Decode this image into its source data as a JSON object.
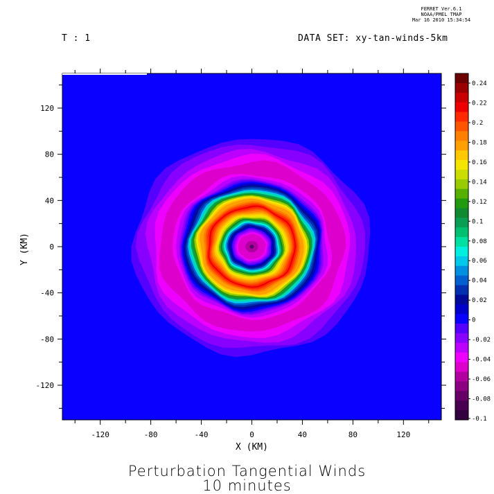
{
  "header": {
    "software": "FERRET  Ver.6.1",
    "org": "NOAA/PMEL TMAP",
    "timestamp": "Mar 16 2010 15:34:54",
    "time_label": "T : 1",
    "dataset_label": "DATA SET: xy-tan-winds-5km"
  },
  "titles": {
    "line1": "Perturbation Tangential Winds",
    "line2": "10 minutes"
  },
  "colors": {
    "background_field": "#0a00ff"
  },
  "chart_data": {
    "type": "heatmap",
    "title": "Perturbation Tangential Winds",
    "subtitle": "10 minutes",
    "xlabel": "X (KM)",
    "ylabel": "Y (KM)",
    "xlim": [
      -150,
      150
    ],
    "ylim": [
      -150,
      150
    ],
    "x_ticks": [
      -120,
      -80,
      -40,
      0,
      40,
      80,
      120
    ],
    "y_ticks": [
      120,
      80,
      40,
      0,
      -40,
      -80,
      -120
    ],
    "grid": false,
    "field_description": "axisymmetric vortex perturbation with positive ring near radius 35 km and negative ring near radius 65 km",
    "rings": [
      {
        "radius_km": 0,
        "value": -0.06
      },
      {
        "radius_km": 12,
        "value": -0.04
      },
      {
        "radius_km": 20,
        "value": 0.04
      },
      {
        "radius_km": 27,
        "value": 0.16
      },
      {
        "radius_km": 35,
        "value": 0.22
      },
      {
        "radius_km": 44,
        "value": 0.16
      },
      {
        "radius_km": 51,
        "value": 0.04
      },
      {
        "radius_km": 58,
        "value": -0.02
      },
      {
        "radius_km": 66,
        "value": -0.05
      },
      {
        "radius_km": 74,
        "value": -0.04
      },
      {
        "radius_km": 84,
        "value": -0.02
      },
      {
        "radius_km": 95,
        "value": 0
      }
    ],
    "colorbar": {
      "labels": [
        "0.24",
        "0.22",
        "0.2",
        "0.18",
        "0.16",
        "0.14",
        "0.12",
        "0.1",
        "0.08",
        "0.06",
        "0.04",
        "0.02",
        "0",
        "-0.02",
        "-0.04",
        "-0.06",
        "-0.08",
        "-0.1"
      ],
      "levels": [
        {
          "value": 0.25,
          "color": "#6b0000"
        },
        {
          "value": 0.24,
          "color": "#9a0000"
        },
        {
          "value": 0.23,
          "color": "#c80000"
        },
        {
          "value": 0.22,
          "color": "#ee0000"
        },
        {
          "value": 0.21,
          "color": "#ff2a00"
        },
        {
          "value": 0.2,
          "color": "#ff5500"
        },
        {
          "value": 0.19,
          "color": "#ff7f00"
        },
        {
          "value": 0.18,
          "color": "#ffa000"
        },
        {
          "value": 0.17,
          "color": "#ffc800"
        },
        {
          "value": 0.16,
          "color": "#f5e600"
        },
        {
          "value": 0.15,
          "color": "#ccdd00"
        },
        {
          "value": 0.14,
          "color": "#99cc00"
        },
        {
          "value": 0.13,
          "color": "#55b000"
        },
        {
          "value": 0.12,
          "color": "#229a10"
        },
        {
          "value": 0.11,
          "color": "#108a30"
        },
        {
          "value": 0.1,
          "color": "#0a9e55"
        },
        {
          "value": 0.09,
          "color": "#00c070"
        },
        {
          "value": 0.08,
          "color": "#00e0a0"
        },
        {
          "value": 0.07,
          "color": "#00f0e0"
        },
        {
          "value": 0.06,
          "color": "#00c8e8"
        },
        {
          "value": 0.05,
          "color": "#0090e0"
        },
        {
          "value": 0.04,
          "color": "#0060d0"
        },
        {
          "value": 0.03,
          "color": "#0030b0"
        },
        {
          "value": 0.02,
          "color": "#000a99"
        },
        {
          "value": 0.01,
          "color": "#0000cc"
        },
        {
          "value": 0.0,
          "color": "#0a00ff"
        },
        {
          "value": -0.01,
          "color": "#5500ff"
        },
        {
          "value": -0.02,
          "color": "#8800ff"
        },
        {
          "value": -0.03,
          "color": "#bb00ff"
        },
        {
          "value": -0.04,
          "color": "#ee00ff"
        },
        {
          "value": -0.05,
          "color": "#dd00cc"
        },
        {
          "value": -0.06,
          "color": "#b000a0"
        },
        {
          "value": -0.07,
          "color": "#8a0080"
        },
        {
          "value": -0.08,
          "color": "#660066"
        },
        {
          "value": -0.09,
          "color": "#4a0050"
        },
        {
          "value": -0.1,
          "color": "#330040"
        }
      ]
    }
  }
}
